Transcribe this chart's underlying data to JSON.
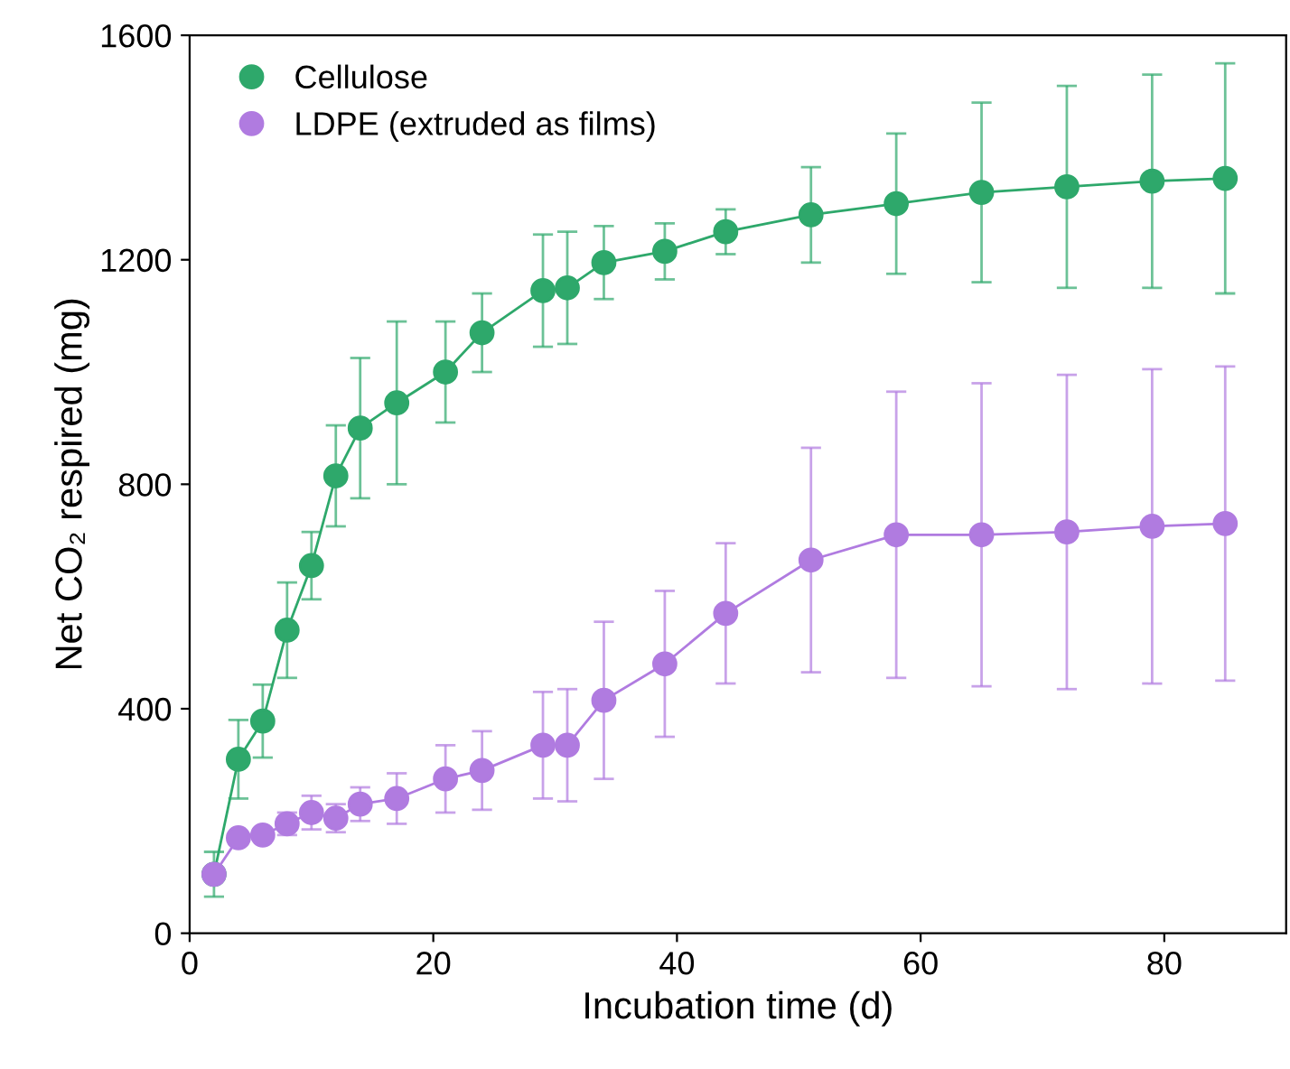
{
  "chart_data": {
    "type": "line",
    "xlabel": "Incubation time (d)",
    "ylabel": "Net CO₂ respired (mg)",
    "x": [
      2,
      4,
      6,
      8,
      10,
      12,
      14,
      17,
      21,
      24,
      29,
      31,
      34,
      39,
      44,
      51,
      58,
      65,
      72,
      79,
      85
    ],
    "series": [
      {
        "name": "Cellulose",
        "color": "#2ea86b",
        "values": [
          105,
          310,
          378,
          540,
          655,
          815,
          900,
          945,
          1000,
          1070,
          1145,
          1150,
          1195,
          1215,
          1250,
          1280,
          1300,
          1320,
          1330,
          1340,
          1345
        ],
        "errors": [
          40,
          70,
          65,
          85,
          60,
          90,
          125,
          145,
          90,
          70,
          100,
          100,
          65,
          50,
          40,
          85,
          125,
          160,
          180,
          190,
          205
        ]
      },
      {
        "name": "LDPE (extruded as films)",
        "color": "#b07be0",
        "values": [
          105,
          170,
          175,
          195,
          215,
          205,
          230,
          240,
          275,
          290,
          335,
          335,
          415,
          480,
          570,
          665,
          710,
          710,
          715,
          725,
          730
        ],
        "errors": [
          null,
          10,
          10,
          20,
          30,
          25,
          30,
          45,
          60,
          70,
          95,
          100,
          140,
          130,
          125,
          200,
          255,
          270,
          280,
          280,
          280
        ]
      }
    ],
    "xlim": [
      0,
      90
    ],
    "ylim": [
      0,
      1600
    ],
    "xticks": [
      0,
      20,
      40,
      60,
      80
    ],
    "yticks": [
      0,
      400,
      800,
      1200,
      1600
    ],
    "marker": "circle",
    "line_style": "solid",
    "legend": "top left",
    "grid": false
  }
}
